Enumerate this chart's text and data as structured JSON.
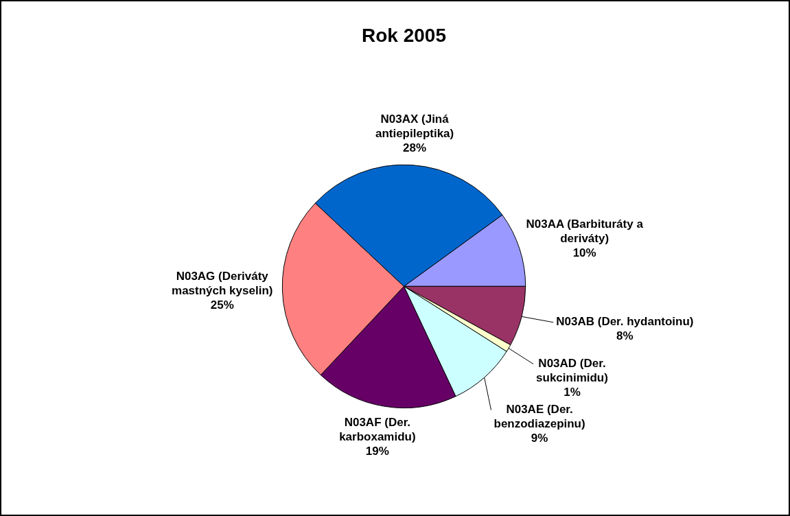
{
  "chart_data": {
    "type": "pie",
    "title": "Rok 2005",
    "categories": [
      "N03AA (Barbituráty a deriváty)",
      "N03AB (Der. hydantoinu)",
      "N03AD (Der. sukcinimidu)",
      "N03AE (Der. benzodiazepinu)",
      "N03AF (Der. karboxamidu)",
      "N03AG (Deriváty mastných kyselin)",
      "N03AX (Jiná antiepileptika)"
    ],
    "values": [
      10,
      8,
      1,
      9,
      19,
      25,
      28
    ],
    "value_labels": [
      "10%",
      "8%",
      "1%",
      "9%",
      "19%",
      "25%",
      "28%"
    ],
    "colors": [
      "#9999ff",
      "#993366",
      "#ffffcc",
      "#ccffff",
      "#660066",
      "#ff8080",
      "#0066cc"
    ]
  }
}
